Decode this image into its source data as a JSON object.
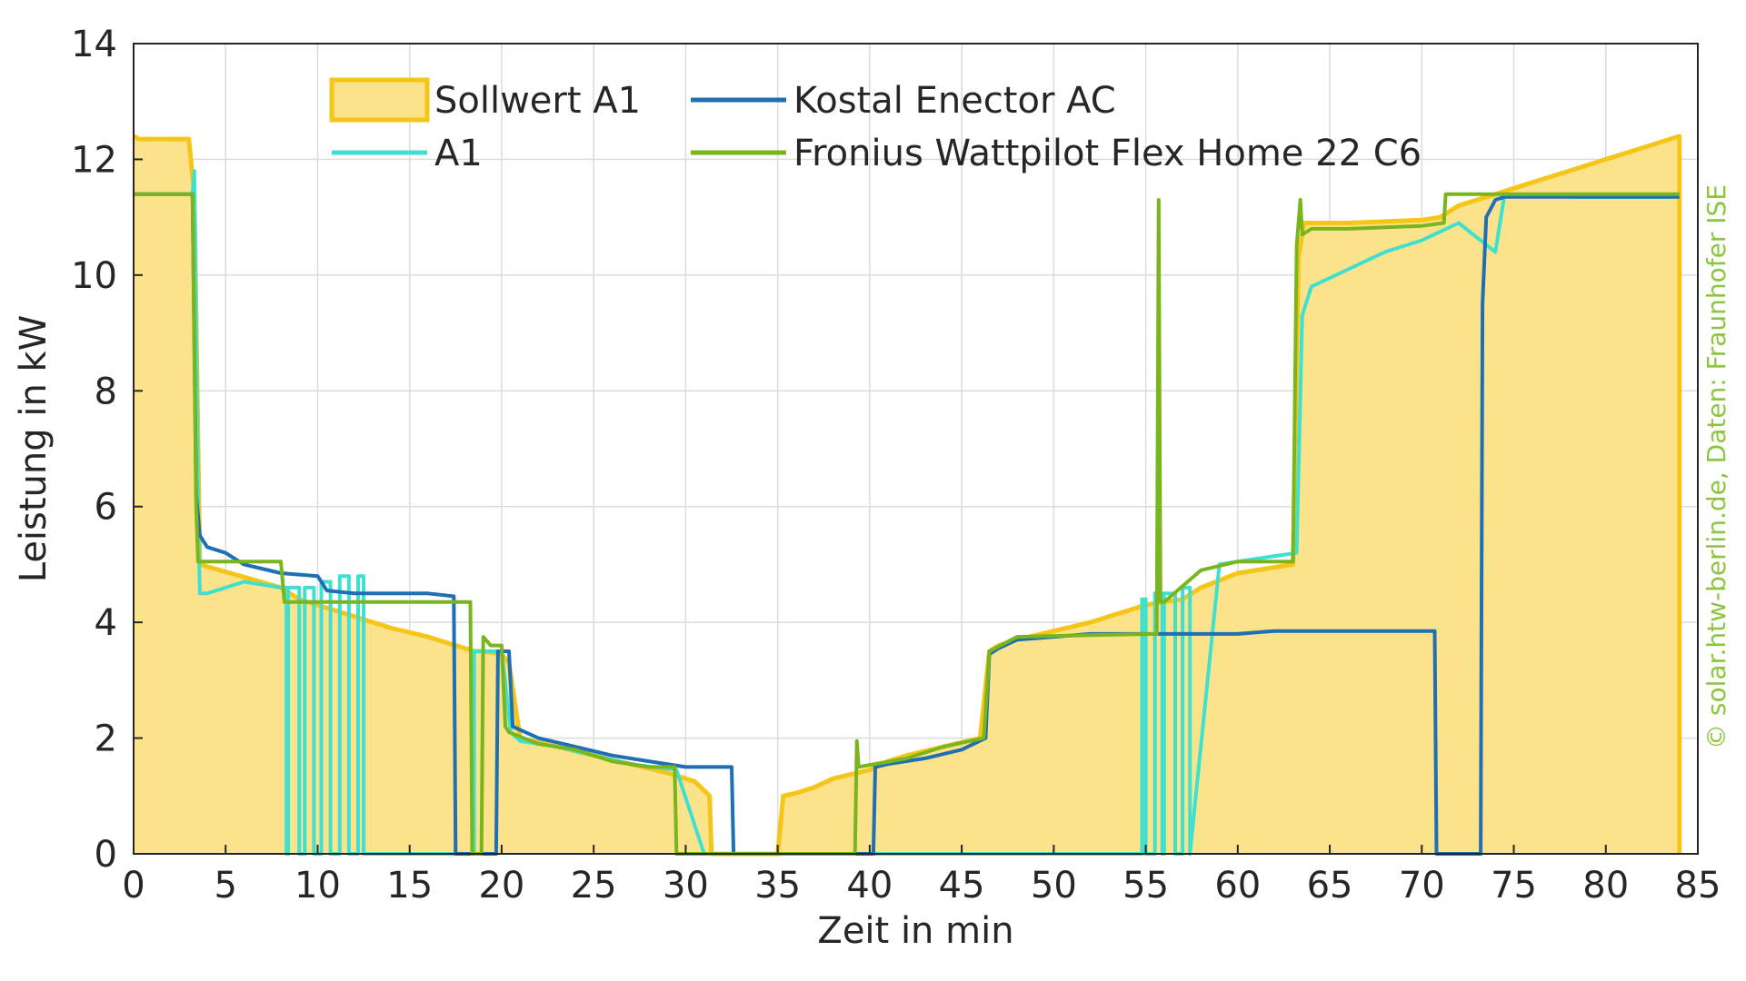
{
  "chart_data": {
    "type": "line",
    "xlabel": "Zeit in min",
    "ylabel": "Leistung in kW",
    "xlim": [
      0,
      85
    ],
    "ylim": [
      0,
      14
    ],
    "xticks": [
      0,
      5,
      10,
      15,
      20,
      25,
      30,
      35,
      40,
      45,
      50,
      55,
      60,
      65,
      70,
      75,
      80,
      85
    ],
    "yticks": [
      0,
      2,
      4,
      6,
      8,
      10,
      12,
      14
    ],
    "grid": true,
    "legend_position": "top-left",
    "credit": "© solar.htw-berlin.de, Daten: Fraunhofer ISE",
    "credit_color": "#8cc63f",
    "series": [
      {
        "name": "Sollwert A1",
        "style": "area",
        "color": "#f5c518",
        "fill": "#fbe38c",
        "x": [
          0,
          0.3,
          3,
          3.3,
          3.6,
          8,
          8.5,
          9,
          12,
          14,
          16,
          18,
          18.6,
          19,
          20,
          20.4,
          21,
          23,
          25,
          27,
          29,
          30.5,
          31.3,
          31.4,
          35,
          35.3,
          36,
          37,
          38,
          40,
          41,
          42,
          44,
          46,
          46.5,
          47,
          48,
          50,
          52,
          54,
          55,
          56,
          57,
          58,
          60,
          63,
          63.3,
          63.6,
          66,
          70,
          71,
          72,
          74,
          76,
          78,
          80,
          82,
          83.5,
          84,
          84
        ],
        "y": [
          12.4,
          12.35,
          12.35,
          11.4,
          5.0,
          4.6,
          4.5,
          4.4,
          4.1,
          3.9,
          3.75,
          3.55,
          3.5,
          3.5,
          3.45,
          3.3,
          2.0,
          1.85,
          1.7,
          1.55,
          1.4,
          1.25,
          1.0,
          0,
          0,
          1.0,
          1.05,
          1.15,
          1.3,
          1.45,
          1.6,
          1.7,
          1.85,
          2.0,
          3.5,
          3.6,
          3.7,
          3.85,
          4.0,
          4.2,
          4.3,
          4.35,
          4.4,
          4.6,
          4.85,
          5.0,
          10.3,
          10.9,
          10.9,
          10.95,
          11.0,
          11.2,
          11.4,
          11.6,
          11.8,
          12.0,
          12.2,
          12.35,
          12.4,
          0
        ]
      },
      {
        "name": "A1",
        "style": "line",
        "color": "#40e0d0",
        "x": [
          0,
          3.2,
          3.3,
          3.5,
          3.6,
          4,
          5,
          6,
          8,
          8.3,
          8.3,
          8.4,
          8.4,
          9,
          9,
          9.3,
          9.3,
          9.8,
          9.8,
          10.2,
          10.2,
          10.7,
          10.7,
          11.2,
          11.2,
          11.7,
          11.7,
          12.2,
          12.2,
          12.5,
          12.5,
          18.5,
          18.5,
          20,
          20.5,
          21,
          23,
          25,
          27,
          29.5,
          31,
          35,
          40,
          45,
          50,
          54.8,
          54.8,
          55,
          55,
          55.5,
          55.5,
          55.9,
          55.9,
          56,
          56,
          56.6,
          56.6,
          57,
          57,
          57.4,
          57.4,
          59,
          61,
          63.2,
          63.5,
          64,
          66,
          68,
          70,
          72,
          74,
          74.5,
          78,
          84
        ],
        "y": [
          11.4,
          11.4,
          11.8,
          6.0,
          4.5,
          4.5,
          4.6,
          4.7,
          4.6,
          4.6,
          0,
          0,
          4.6,
          4.6,
          0,
          0,
          4.6,
          4.6,
          0,
          0,
          4.7,
          4.7,
          0,
          0,
          4.8,
          4.8,
          0,
          0,
          4.8,
          4.8,
          0,
          0,
          3.5,
          3.5,
          2.1,
          1.95,
          1.85,
          1.7,
          1.55,
          1.45,
          0,
          0,
          0,
          0,
          0,
          0,
          4.4,
          4.4,
          0,
          0,
          4.5,
          4.5,
          0,
          0,
          4.5,
          4.5,
          0,
          0,
          4.6,
          4.6,
          0,
          5.0,
          5.1,
          5.2,
          9.3,
          9.8,
          10.1,
          10.4,
          10.6,
          10.9,
          10.4,
          11.4,
          11.35,
          11.35
        ]
      },
      {
        "name": "Kostal Enector AC",
        "style": "line",
        "color": "#1f6fb5",
        "x": [
          0,
          3.2,
          3.4,
          3.6,
          4,
          5,
          6,
          8,
          10,
          10.5,
          12,
          14,
          16,
          17.4,
          17.5,
          19.7,
          19.8,
          20.4,
          20.6,
          22,
          24,
          26,
          28,
          30,
          32.5,
          32.6,
          40.2,
          40.3,
          41,
          43,
          45,
          46.3,
          46.5,
          47,
          48,
          50,
          52,
          55,
          58,
          60,
          62,
          63,
          65,
          68,
          70.7,
          70.8,
          73.2,
          73.3,
          73.5,
          74,
          74.5,
          78,
          82,
          84
        ],
        "y": [
          11.4,
          11.4,
          6.2,
          5.5,
          5.3,
          5.2,
          5.0,
          4.85,
          4.8,
          4.55,
          4.5,
          4.5,
          4.5,
          4.45,
          0,
          0,
          3.5,
          3.5,
          2.2,
          2.0,
          1.85,
          1.7,
          1.6,
          1.5,
          1.5,
          0,
          0,
          1.5,
          1.55,
          1.65,
          1.8,
          2.0,
          3.45,
          3.55,
          3.7,
          3.75,
          3.8,
          3.8,
          3.8,
          3.8,
          3.85,
          3.85,
          3.85,
          3.85,
          3.85,
          0,
          0,
          9.5,
          11.0,
          11.3,
          11.35,
          11.35,
          11.35,
          11.35
        ]
      },
      {
        "name": "Fronius Wattpilot Flex Home 22 C6",
        "style": "line",
        "color": "#7ab51d",
        "x": [
          0,
          3.2,
          3.4,
          3.5,
          5,
          8,
          8.2,
          10,
          14,
          18.3,
          18.4,
          18.9,
          19,
          19.4,
          20,
          20.2,
          20.4,
          22,
          24,
          25,
          26,
          28,
          29.4,
          29.5,
          39.2,
          39.3,
          39.4,
          42,
          44,
          46.2,
          46.5,
          48,
          52,
          55.6,
          55.7,
          55.8,
          56,
          58,
          60,
          63,
          63.2,
          63.4,
          63.5,
          64,
          66,
          70,
          71.2,
          71.3,
          84
        ],
        "y": [
          11.4,
          11.4,
          6.0,
          5.05,
          5.05,
          5.05,
          4.35,
          4.35,
          4.35,
          4.35,
          0,
          0,
          3.75,
          3.6,
          3.6,
          2.2,
          2.1,
          1.9,
          1.8,
          1.7,
          1.6,
          1.5,
          1.5,
          0,
          0,
          1.95,
          1.5,
          1.65,
          1.85,
          2.0,
          3.5,
          3.75,
          3.78,
          3.8,
          11.3,
          4.35,
          4.35,
          4.9,
          5.05,
          5.05,
          10.5,
          11.3,
          10.7,
          10.8,
          10.8,
          10.85,
          10.9,
          11.4,
          11.4
        ]
      }
    ]
  }
}
